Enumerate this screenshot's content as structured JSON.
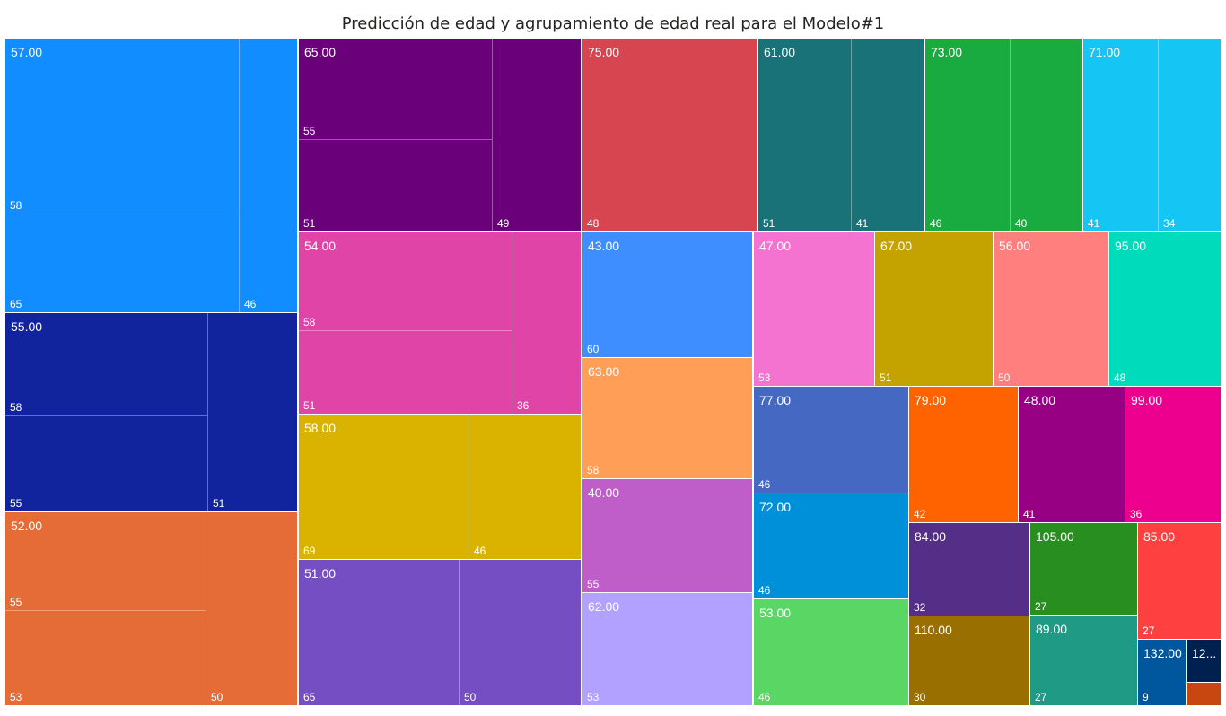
{
  "chart_data": {
    "type": "treemap",
    "title": "Predicción de edad y agrupamiento de edad real para el Modelo#1",
    "groups": [
      {
        "label": "57.00",
        "color": "#118DFF",
        "children": [
          "58",
          "65",
          "46"
        ]
      },
      {
        "label": "55.00",
        "color": "#12239E",
        "children": [
          "58",
          "55",
          "51"
        ]
      },
      {
        "label": "52.00",
        "color": "#E66C37",
        "children": [
          "55",
          "53",
          "50"
        ]
      },
      {
        "label": "65.00",
        "color": "#6B007B",
        "children": [
          "55",
          "51",
          "49"
        ]
      },
      {
        "label": "54.00",
        "color": "#E044A7",
        "children": [
          "58",
          "51",
          "36"
        ]
      },
      {
        "label": "58.00",
        "color": "#D9B300",
        "children": [
          "69",
          "46"
        ]
      },
      {
        "label": "51.00",
        "color": "#744EC2",
        "children": [
          "65",
          "50"
        ]
      },
      {
        "label": "75.00",
        "color": "#D64550",
        "children": [
          "48"
        ]
      },
      {
        "label": "43.00",
        "color": "#3F8EFF",
        "children": [
          "60"
        ]
      },
      {
        "label": "63.00",
        "color": "#FF9E57",
        "children": [
          "58"
        ]
      },
      {
        "label": "40.00",
        "color": "#BF5DC9",
        "children": [
          "55"
        ]
      },
      {
        "label": "62.00",
        "color": "#B3A1FF",
        "children": [
          "53"
        ]
      },
      {
        "label": "61.00",
        "color": "#197278",
        "children": [
          "51",
          "41"
        ]
      },
      {
        "label": "73.00",
        "color": "#1AAB40",
        "children": [
          "46",
          "40"
        ]
      },
      {
        "label": "71.00",
        "color": "#15C6F4",
        "children": [
          "41",
          "34"
        ]
      },
      {
        "label": "47.00",
        "color": "#F472D0",
        "children": [
          "53"
        ]
      },
      {
        "label": "67.00",
        "color": "#C4A200",
        "children": [
          "51"
        ]
      },
      {
        "label": "56.00",
        "color": "#FF7F7F",
        "children": [
          "50"
        ]
      },
      {
        "label": "95.00",
        "color": "#00DBBC",
        "children": [
          "48"
        ]
      },
      {
        "label": "77.00",
        "color": "#4568C3",
        "children": [
          "46"
        ]
      },
      {
        "label": "72.00",
        "color": "#0090D9",
        "children": [
          "46"
        ]
      },
      {
        "label": "53.00",
        "color": "#5AD665",
        "children": [
          "46"
        ]
      },
      {
        "label": "79.00",
        "color": "#FF6300",
        "children": [
          "42"
        ]
      },
      {
        "label": "48.00",
        "color": "#970083",
        "children": [
          "41"
        ]
      },
      {
        "label": "99.00",
        "color": "#EE008F",
        "children": [
          "36"
        ]
      },
      {
        "label": "84.00",
        "color": "#552F87",
        "children": [
          "32"
        ]
      },
      {
        "label": "105.00",
        "color": "#288E1F",
        "children": [
          "27"
        ]
      },
      {
        "label": "85.00",
        "color": "#FF4040",
        "children": [
          "27"
        ]
      },
      {
        "label": "110.00",
        "color": "#996F00",
        "children": [
          "30"
        ]
      },
      {
        "label": "89.00",
        "color": "#1F9A85",
        "children": [
          "27"
        ]
      },
      {
        "label": "132.00",
        "color": "#00579E",
        "children": [
          "9"
        ]
      },
      {
        "label": "12...",
        "color": "#002050",
        "children": []
      },
      {
        "label": "",
        "color": "#C8460F",
        "children": []
      }
    ]
  }
}
